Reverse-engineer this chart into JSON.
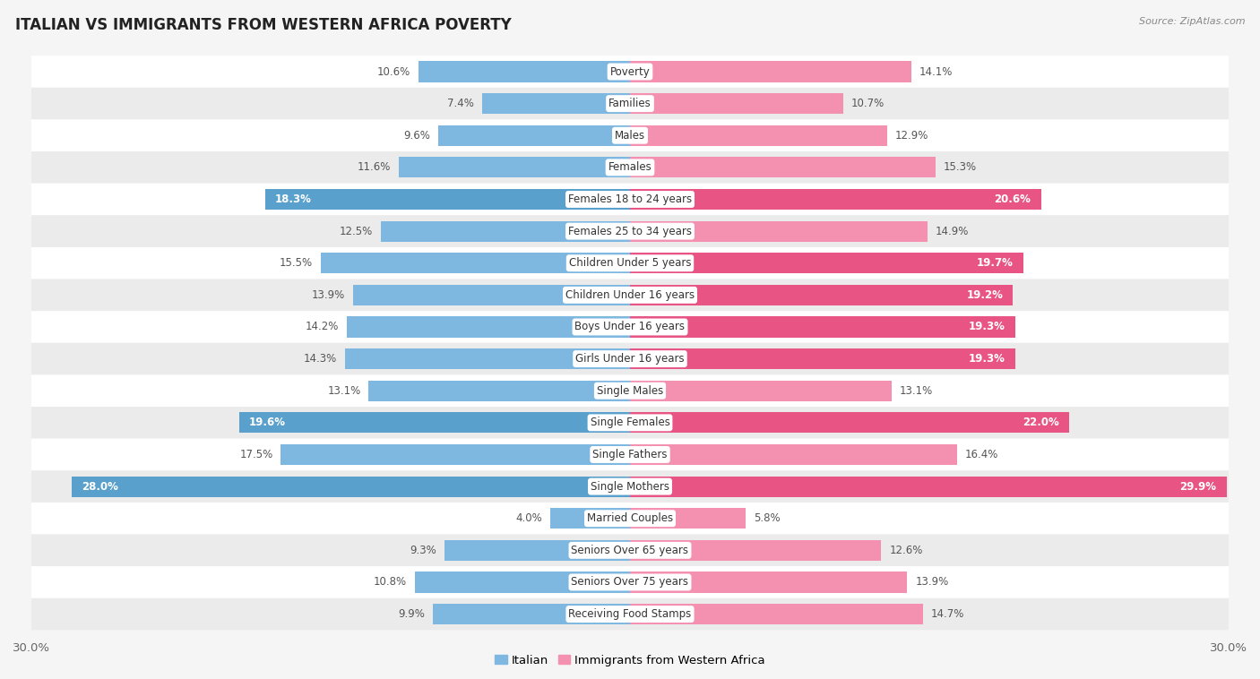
{
  "title": "ITALIAN VS IMMIGRANTS FROM WESTERN AFRICA POVERTY",
  "source": "Source: ZipAtlas.com",
  "categories": [
    "Poverty",
    "Families",
    "Males",
    "Females",
    "Females 18 to 24 years",
    "Females 25 to 34 years",
    "Children Under 5 years",
    "Children Under 16 years",
    "Boys Under 16 years",
    "Girls Under 16 years",
    "Single Males",
    "Single Females",
    "Single Fathers",
    "Single Mothers",
    "Married Couples",
    "Seniors Over 65 years",
    "Seniors Over 75 years",
    "Receiving Food Stamps"
  ],
  "italian_values": [
    10.6,
    7.4,
    9.6,
    11.6,
    18.3,
    12.5,
    15.5,
    13.9,
    14.2,
    14.3,
    13.1,
    19.6,
    17.5,
    28.0,
    4.0,
    9.3,
    10.8,
    9.9
  ],
  "immigrant_values": [
    14.1,
    10.7,
    12.9,
    15.3,
    20.6,
    14.9,
    19.7,
    19.2,
    19.3,
    19.3,
    13.1,
    22.0,
    16.4,
    29.9,
    5.8,
    12.6,
    13.9,
    14.7
  ],
  "italian_color": "#7eb8e0",
  "immigrant_color": "#f490b0",
  "italian_highlight_color": "#5aa0cc",
  "immigrant_highlight_color": "#e85585",
  "highlight_rows": [
    4,
    6,
    7,
    8,
    9,
    11,
    13
  ],
  "xlim": 30.0,
  "background_color": "#f5f5f5",
  "row_light": "#ffffff",
  "row_dark": "#ebebeb",
  "legend_italian": "Italian",
  "legend_immigrant": "Immigrants from Western Africa",
  "title_fontsize": 12,
  "source_fontsize": 8,
  "axis_fontsize": 9.5,
  "label_fontsize": 8.5,
  "value_fontsize": 8.5
}
